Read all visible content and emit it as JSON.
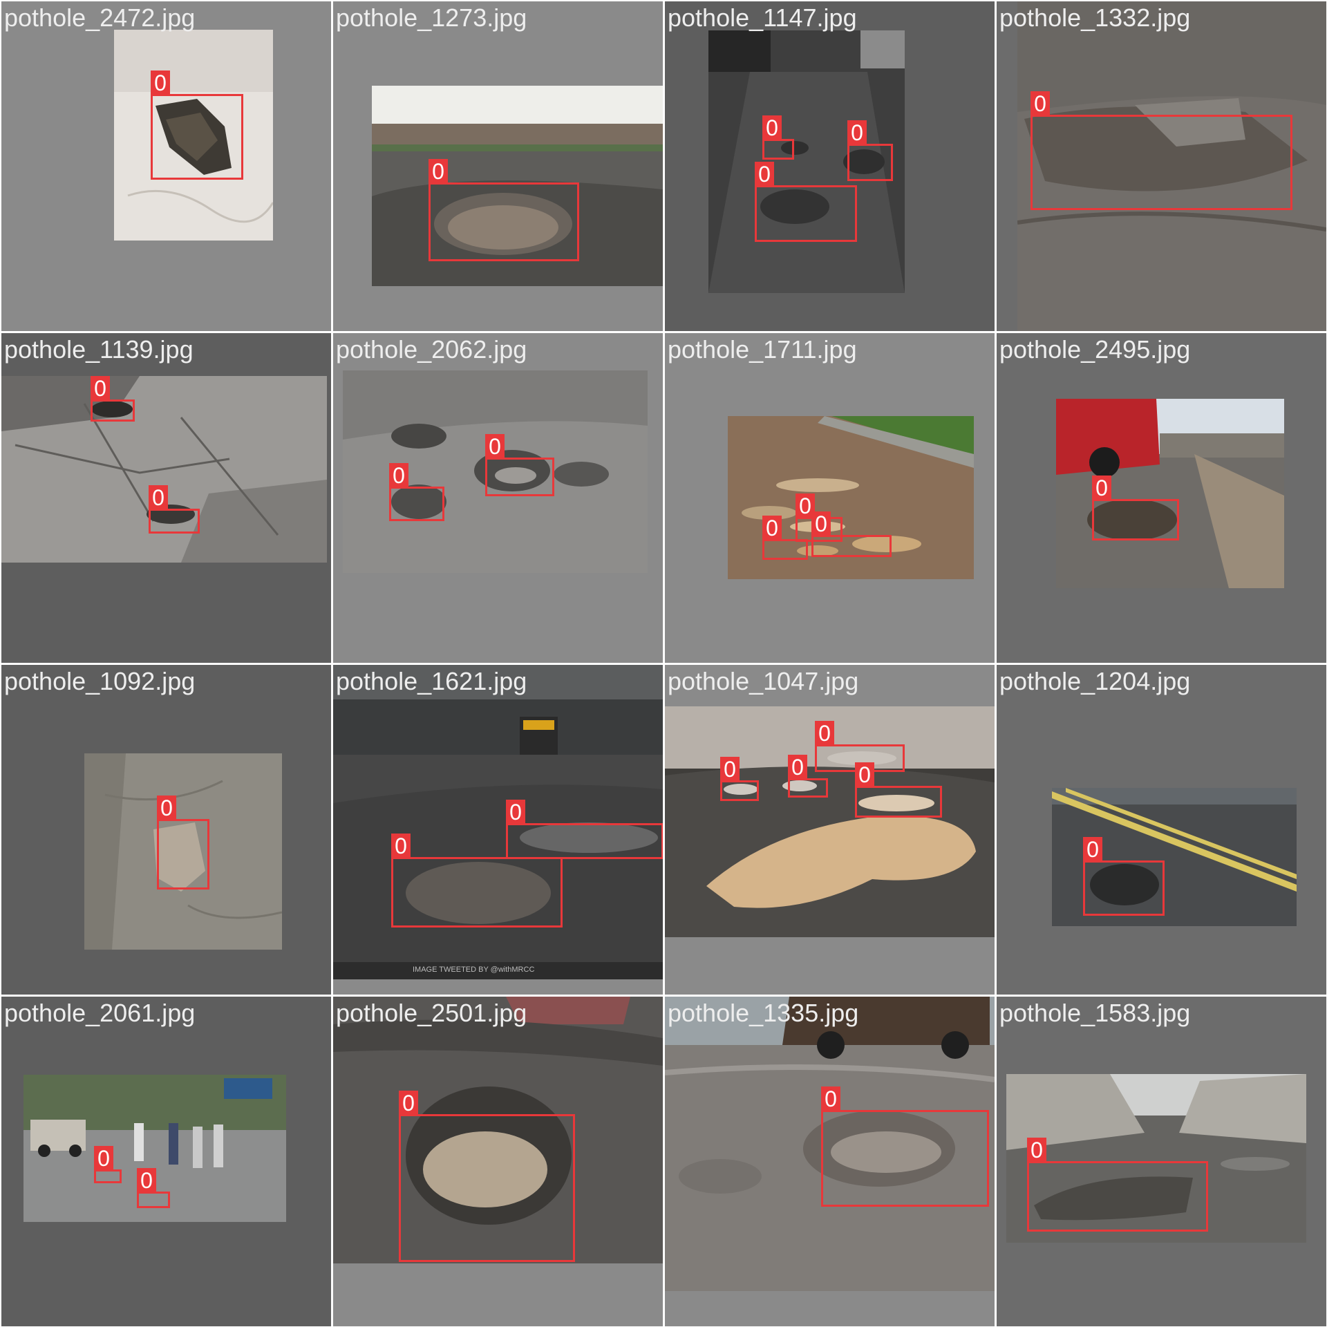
{
  "mosaic": {
    "class_label": "0",
    "box_color": "#e8383a",
    "tiles": [
      {
        "file": "pothole_2472.jpg",
        "scene": "dry cracked concrete surface with a dark broken pothole",
        "detections": 1
      },
      {
        "file": "pothole_1273.jpg",
        "scene": "residential road with a large water-filled pothole",
        "detections": 1
      },
      {
        "file": "pothole_1147.jpg",
        "scene": "wet street with parked cars and several potholes",
        "detections": 3
      },
      {
        "file": "pothole_1332.jpg",
        "scene": "close-up of a wide shallow pothole on worn asphalt",
        "detections": 1
      },
      {
        "file": "pothole_1139.jpg",
        "scene": "cracked grey asphalt with two small potholes",
        "detections": 2
      },
      {
        "file": "pothole_2062.jpg",
        "scene": "gravel road with clusters of water-filled potholes",
        "detections": 2
      },
      {
        "file": "pothole_1711.jpg",
        "scene": "rain-soaked road with many puddle potholes",
        "detections": 3
      },
      {
        "file": "pothole_2495.jpg",
        "scene": "red SUV beside a pothole near a curb",
        "detections": 1
      },
      {
        "file": "pothole_1092.jpg",
        "scene": "dusty pavement with a shallow pothole",
        "detections": 1
      },
      {
        "file": "pothole_1621.jpg",
        "scene": "busy wet city road with auto rickshaws and large potholes",
        "detections": 2
      },
      {
        "file": "pothole_1047.jpg",
        "scene": "flooded pothole with muddy water on a rainy street",
        "detections": 4
      },
      {
        "file": "pothole_1204.jpg",
        "scene": "road with yellow lane lines and a dark pothole",
        "detections": 1
      },
      {
        "file": "pothole_2061.jpg",
        "scene": "rainy street with pedestrians and small potholes",
        "detections": 2
      },
      {
        "file": "pothole_2501.jpg",
        "scene": "close-up of a puddle pothole in front of a car",
        "detections": 1
      },
      {
        "file": "pothole_1335.jpg",
        "scene": "blurred pothole with a car passing behind",
        "detections": 1
      },
      {
        "file": "pothole_1583.jpg",
        "scene": "narrow lane between walls with a long water pothole",
        "detections": 1
      }
    ]
  },
  "watermark": "IMAGE TWEETED BY @withMRCC"
}
